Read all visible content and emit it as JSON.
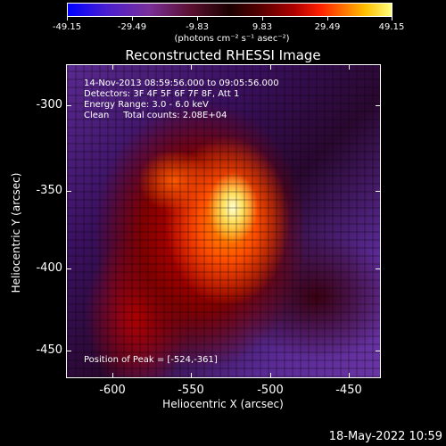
{
  "colorbar": {
    "ticks": [
      "-49.15",
      "-29.49",
      "-9.83",
      "9.83",
      "29.49",
      "49.15"
    ],
    "units": "(photons cm⁻² s⁻¹ asec⁻²)"
  },
  "title": "Reconstructed RHESSI Image",
  "info": {
    "time": "14-Nov-2013 08:59:56.000 to 09:05:56.000",
    "detectors": "Detectors: 3F 4F 5F 6F 7F 8F, Att 1",
    "energy": "Energy Range: 3.0 - 6.0 keV",
    "clean": "Clean     Total counts: 2.08E+04",
    "peak": "Position of Peak = [-524,-361]"
  },
  "axes": {
    "y_ticks": [
      "-300",
      "-350",
      "-400",
      "-450"
    ],
    "x_ticks": [
      "-600",
      "-550",
      "-500",
      "-450"
    ],
    "xtitle": "Heliocentric X (arcsec)",
    "ytitle": "Heliocentric Y (arcsec)"
  },
  "stamp": "18-May-2022 10:59"
}
